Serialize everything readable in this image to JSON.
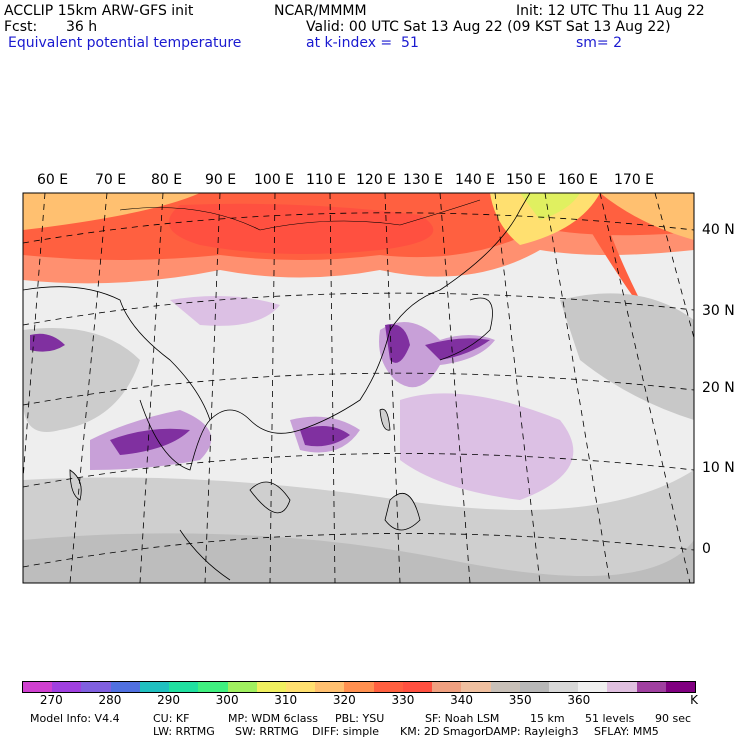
{
  "header": {
    "model": "ACCLIP 15km ARW-GFS init",
    "org": "NCAR/MMMM",
    "init": "Init: 12 UTC Thu 11 Aug 22",
    "fcst_label": "Fcst:",
    "fcst_value": "36 h",
    "valid": "Valid: 00 UTC Sat 13 Aug 22 (09 KST Sat 13 Aug 22)",
    "field": "Equivalent potential temperature",
    "level": "at k-index =  51",
    "smoothing": "sm= 2"
  },
  "map": {
    "lon_labels": [
      "60 E",
      "70 E",
      "80 E",
      "90 E",
      "100 E",
      "110 E",
      "120 E",
      "130 E",
      "140 E",
      "150 E",
      "160 E",
      "170 E"
    ],
    "lat_labels": [
      "40 N",
      "30 N",
      "20 N",
      "10 N",
      "0"
    ]
  },
  "colorbar": {
    "colors": [
      "#d040d0",
      "#a040e0",
      "#8060e0",
      "#5070e0",
      "#20c0c0",
      "#20e0a0",
      "#40f080",
      "#a0f060",
      "#f0f060",
      "#ffe070",
      "#ffc070",
      "#ff9050",
      "#ff6040",
      "#ff5040",
      "#f0a080",
      "#f0c0a0",
      "#c8c0b8",
      "#b8b8b8",
      "#d8d8d8",
      "#f0f0f0",
      "#e0c0e0",
      "#a040a0",
      "#800080"
    ],
    "tick_labels": [
      "270",
      "280",
      "290",
      "300",
      "310",
      "320",
      "330",
      "340",
      "350",
      "360"
    ],
    "unit": "K"
  },
  "footer": {
    "line1": [
      "Model Info: V4.4",
      "CU: KF",
      "MP: WDM 6class",
      "PBL: YSU",
      "SF: Noah LSM",
      "15 km",
      "51 levels",
      "90 sec"
    ],
    "line2": [
      "LW: RRTMG",
      "SW: RRTMG",
      "DIFF: simple",
      "KM: 2D Smagor",
      "DAMP: Rayleigh3",
      "SFLAY: MM5"
    ]
  }
}
